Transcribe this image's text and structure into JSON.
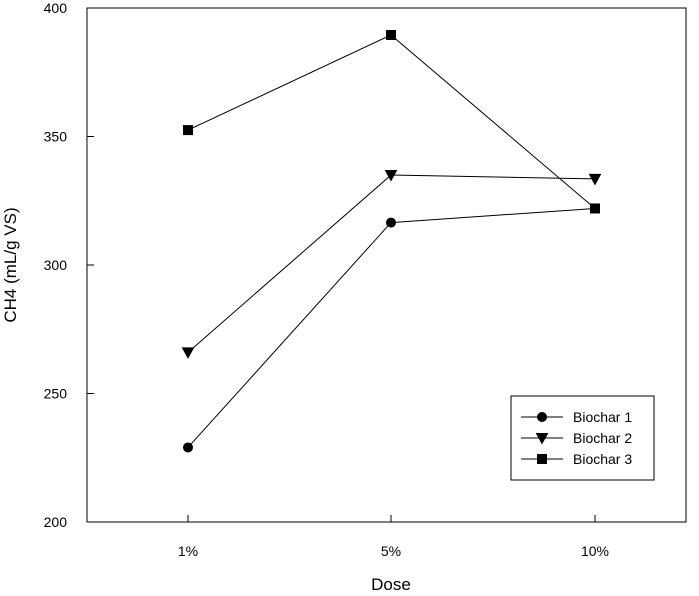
{
  "chart_data": {
    "type": "line",
    "categories": [
      "1%",
      "5%",
      "10%"
    ],
    "series": [
      {
        "name": "Biochar 1",
        "marker": "circle",
        "values": [
          229,
          316.5,
          322
        ]
      },
      {
        "name": "Biochar 2",
        "marker": "triangle-down",
        "values": [
          266,
          335,
          333.5
        ]
      },
      {
        "name": "Biochar 3",
        "marker": "square",
        "values": [
          352.5,
          389.5,
          322
        ]
      }
    ],
    "xlabel": "Dose",
    "ylabel": "CH4 (mL/g VS)",
    "ylim": [
      200,
      400
    ],
    "yticks": [
      200,
      250,
      300,
      350,
      400
    ],
    "grid": false,
    "legend_position": "bottom-right",
    "line_color": "#000000"
  }
}
